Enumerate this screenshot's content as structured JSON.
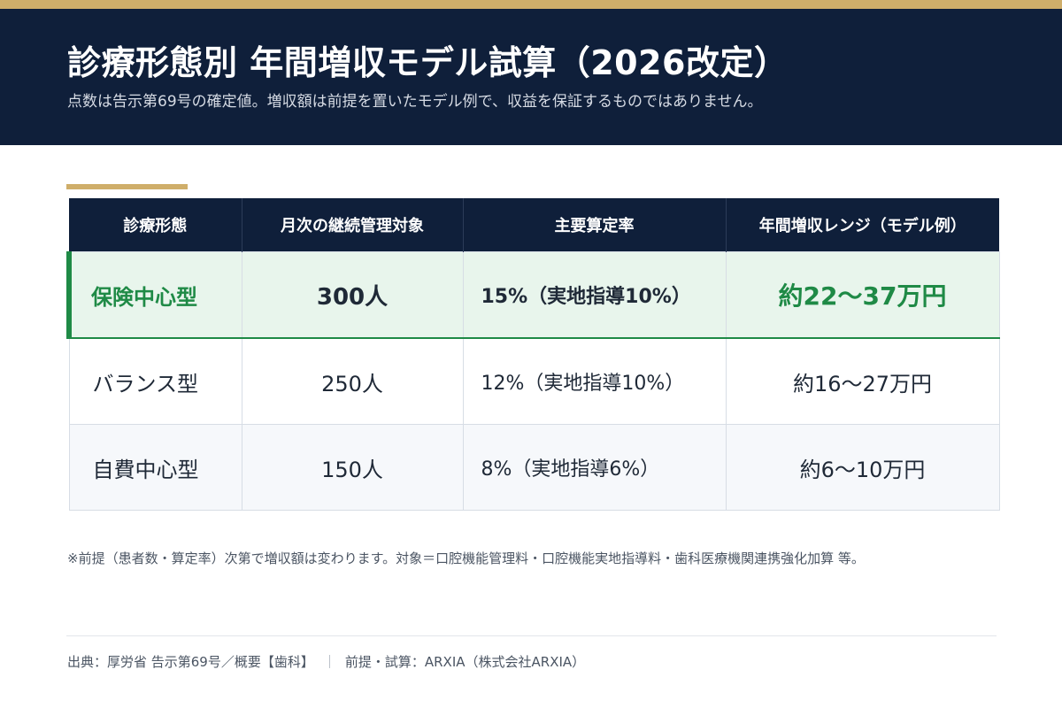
{
  "header": {
    "title": "診療形態別 年間増収モデル試算（2026改定）",
    "subtitle": "点数は告示第69号の確定値。増収額は前提を置いたモデル例で、収益を保証するものではありません。"
  },
  "colors": {
    "navy": "#0f1f3a",
    "gold": "#cfae6a",
    "highlight_green": "#1f8a46",
    "highlight_bg": "#e8f5ec"
  },
  "chart_data": {
    "type": "table",
    "columns": [
      "診療形態",
      "月次の継続管理対象",
      "主要算定率",
      "年間増収レンジ（モデル例）"
    ],
    "rows": [
      {
        "type": "保険中心型",
        "patients": "300人",
        "rate": "15%（実地指導10%）",
        "range": "約22〜37万円",
        "highlighted": true,
        "patients_value": 300,
        "rate_value": 15,
        "guidance_rate_value": 10,
        "range_low_man_yen": 22,
        "range_high_man_yen": 37
      },
      {
        "type": "バランス型",
        "patients": "250人",
        "rate": "12%（実地指導10%）",
        "range": "約16〜27万円",
        "highlighted": false,
        "patients_value": 250,
        "rate_value": 12,
        "guidance_rate_value": 10,
        "range_low_man_yen": 16,
        "range_high_man_yen": 27
      },
      {
        "type": "自費中心型",
        "patients": "150人",
        "rate": "8%（実地指導6%）",
        "range": "約6〜10万円",
        "highlighted": false,
        "patients_value": 150,
        "rate_value": 8,
        "guidance_rate_value": 6,
        "range_low_man_yen": 6,
        "range_high_man_yen": 10
      }
    ]
  },
  "note": "※前提（患者数・算定率）次第で増収額は変わります。対象＝口腔機能管理料・口腔機能実地指導料・歯科医療機関連携強化加算 等。",
  "footer": {
    "source": "出典：厚労省 告示第69号／概要【歯科】",
    "separator": "｜",
    "credit": "前提・試算：ARXIA（株式会社ARXIA）"
  }
}
